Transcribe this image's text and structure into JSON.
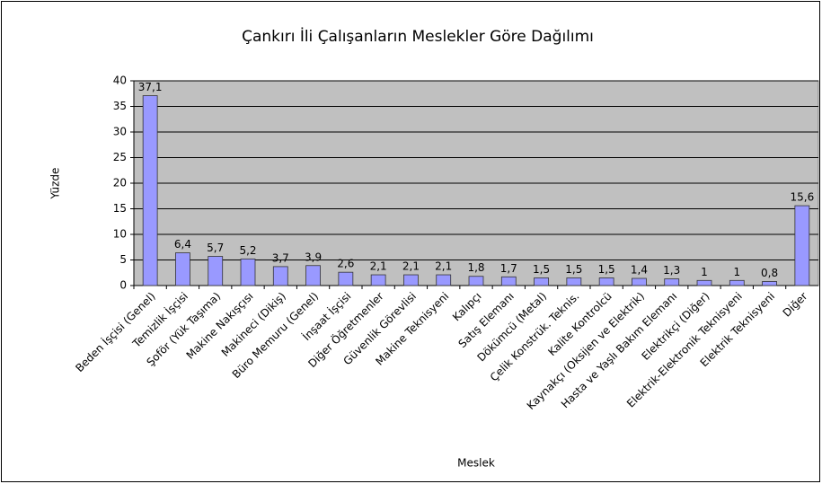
{
  "chart_data": {
    "type": "bar",
    "title": "Çankırı İli Çalışanların Meslekler Göre Dağılımı",
    "x_label": "Meslek",
    "y_label": "Yüzde",
    "categories": [
      "Beden İşçisi (Genel)",
      "Temizlik İşçisi",
      "Şoför (Yük Taşıma)",
      "Makine Nakışçısı",
      "Makineci (Dikiş)",
      "Büro Memuru (Genel)",
      "İnşaat İşçisi",
      "Diğer Öğretmenler",
      "Güvenlik Görevlisi",
      "Makine Teknisyeni",
      "Kalıpçı",
      "Satış Elemanı",
      "Dökümcü (Metal)",
      "Çelik Konstrük. Teknis.",
      "Kalite Kontrolcü",
      "Kaynakçı (Oksijen ve Elektrik)",
      "Hasta ve Yaşlı Bakım Elemanı",
      "Elektrikçi (Diğer)",
      "Elektrik-Elektronik Teknisyeni",
      "Elektrik Teknisyeni",
      "Diğer"
    ],
    "values": [
      37.1,
      6.4,
      5.7,
      5.2,
      3.7,
      3.9,
      2.6,
      2.1,
      2.1,
      2.1,
      1.8,
      1.7,
      1.5,
      1.5,
      1.5,
      1.4,
      1.3,
      1,
      1,
      0.8,
      15.6
    ],
    "value_labels": [
      "37,1",
      "6,4",
      "5,7",
      "5,2",
      "3,7",
      "3,9",
      "2,6",
      "2,1",
      "2,1",
      "2,1",
      "1,8",
      "1,7",
      "1,5",
      "1,5",
      "1,5",
      "1,4",
      "1,3",
      "1",
      "1",
      "0,8",
      "15,6"
    ],
    "color": "#9999ff",
    "ylim": [
      0,
      40
    ],
    "yticks": [
      0,
      5,
      10,
      15,
      20,
      25,
      30,
      35,
      40
    ],
    "grid": true
  }
}
